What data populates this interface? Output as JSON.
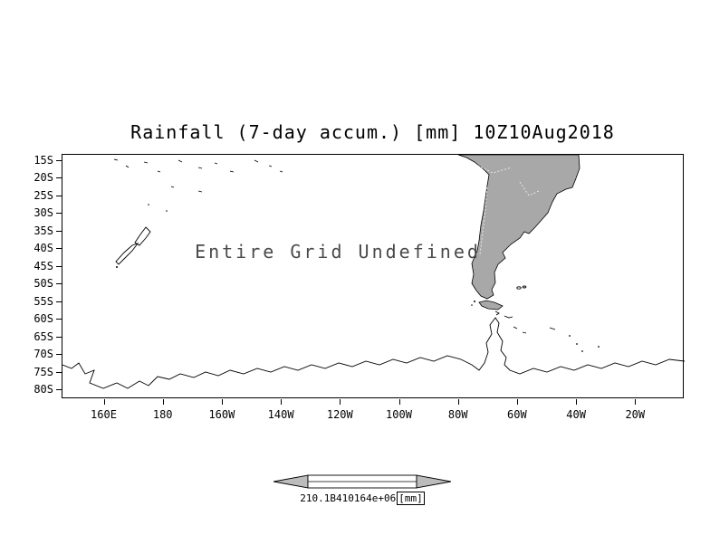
{
  "title": "Rainfall (7-day accum.) [mm] 10Z10Aug2018",
  "annotation": "Entire Grid Undefined",
  "axes": {
    "lat_labels": [
      "15S",
      "20S",
      "25S",
      "30S",
      "35S",
      "40S",
      "45S",
      "50S",
      "55S",
      "60S",
      "65S",
      "70S",
      "75S",
      "80S"
    ],
    "lon_labels": [
      "160E",
      "180",
      "160W",
      "140W",
      "120W",
      "100W",
      "80W",
      "60W",
      "40W",
      "20W"
    ]
  },
  "colorbar": {
    "tick_text": "210.1B410164e+06",
    "unit": "[mm]"
  },
  "colors": {
    "land": "#a8a8a8",
    "coastline": "#000000",
    "annotation_text": "#4a4a4a"
  },
  "chart_data": {
    "type": "heatmap",
    "title": "Rainfall (7-day accum.) [mm] 10Z10Aug2018",
    "subtitle": "",
    "projection": "latlon map, South Pacific / South America / Antarctica sector",
    "x_ticks": [
      "160E",
      "180",
      "160W",
      "140W",
      "120W",
      "100W",
      "80W",
      "60W",
      "40W",
      "20W"
    ],
    "y_ticks": [
      "15S",
      "20S",
      "25S",
      "30S",
      "35S",
      "40S",
      "45S",
      "50S",
      "55S",
      "60S",
      "65S",
      "70S",
      "75S",
      "80S"
    ],
    "lon_range": [
      "160E",
      "20W"
    ],
    "lat_range": [
      "15S",
      "80S"
    ],
    "values": null,
    "status_annotation": "Entire Grid Undefined",
    "colorbar_tick_text": "210.1B410164e+06",
    "units": "mm",
    "grid": false,
    "legend_position": "bottom-center colorbar"
  }
}
